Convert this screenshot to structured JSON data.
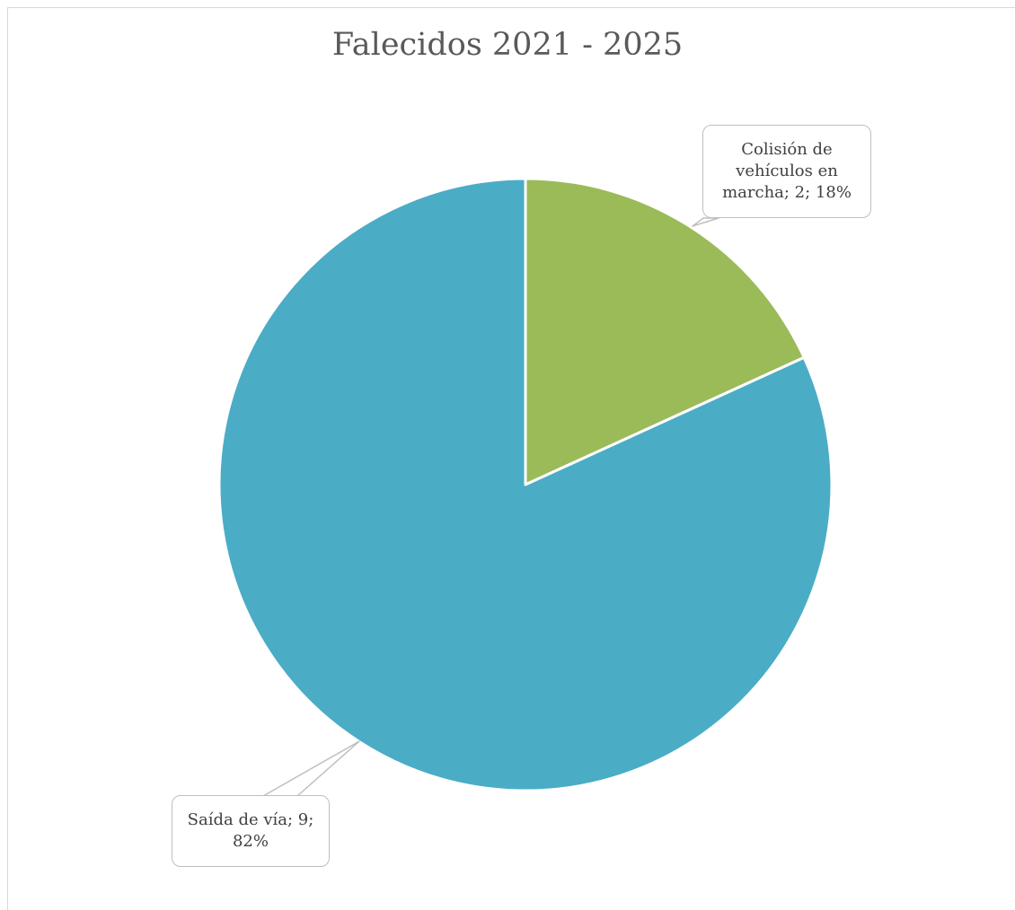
{
  "chart_data": {
    "type": "pie",
    "title": "Falecidos 2021 - 2025",
    "slices": [
      {
        "label": "Colisión de vehículos en marcha",
        "value": 2,
        "percent": "18%",
        "color": "#9bbb59",
        "data_label": "Colisión de vehículos en marcha; 2; 18%"
      },
      {
        "label": "Saída de vía",
        "value": 9,
        "percent": "82%",
        "color": "#4bacc6",
        "data_label": "Saída de vía; 9; 82%"
      }
    ],
    "legend": "none"
  }
}
